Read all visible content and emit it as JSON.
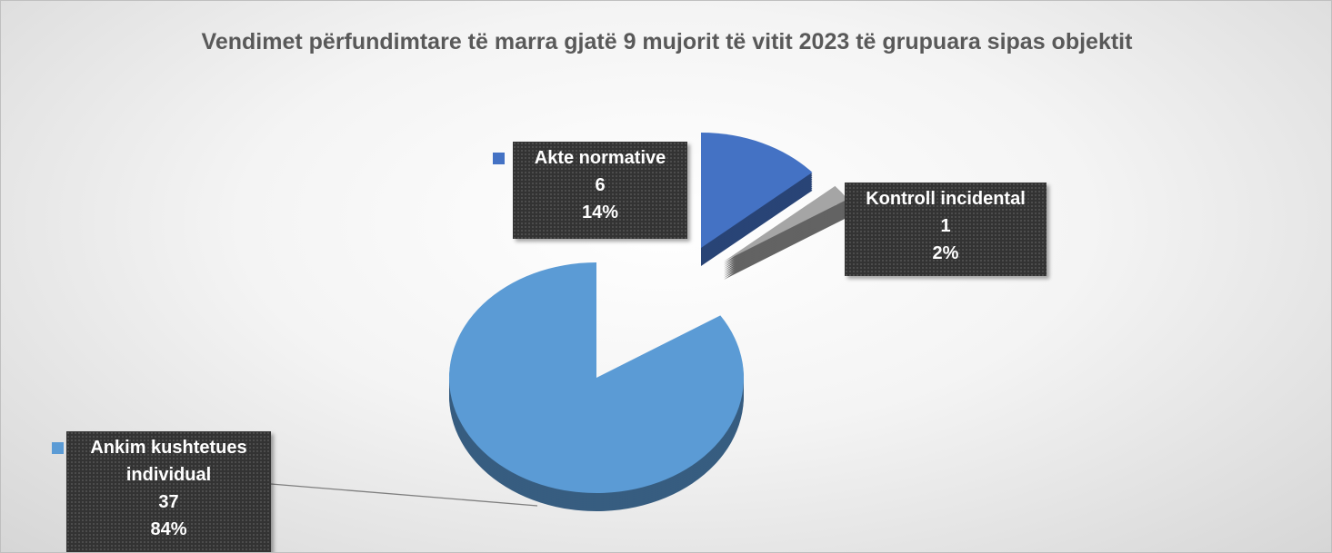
{
  "chart_data": {
    "type": "pie3d",
    "title": "Vendimet përfundimtare të marra gjatë 9 mujorit të vitit 2023 të grupuara sipas objektit",
    "categories": [
      "Akte normative",
      "Kontroll incidental",
      "Ankim kushtetues individual"
    ],
    "values": [
      6,
      1,
      37
    ],
    "percent_labels": [
      "14%",
      "2%",
      "84%"
    ],
    "colors": [
      "#4472c4",
      "#a5a5a5",
      "#5b9bd5"
    ]
  }
}
